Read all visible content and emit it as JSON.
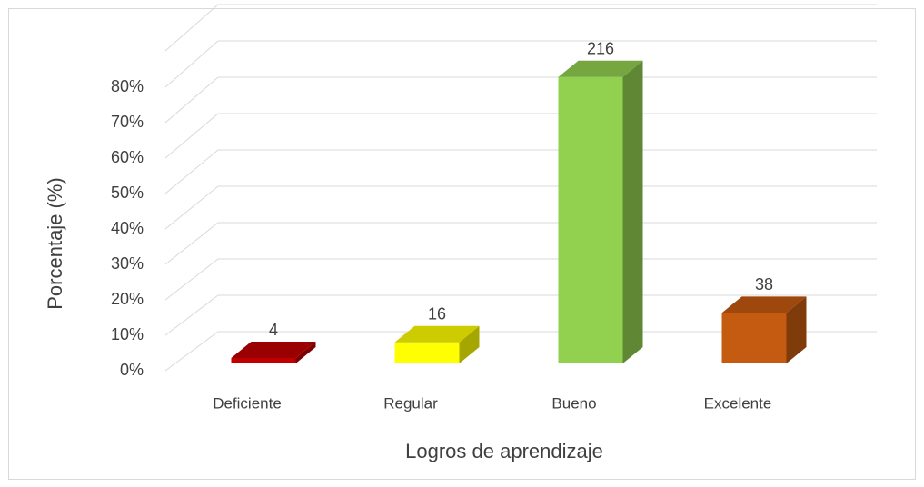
{
  "chart_data": {
    "type": "bar3d",
    "categories": [
      "Deficiente",
      "Regular",
      "Bueno",
      "Excelente"
    ],
    "values": [
      1.5,
      5.8,
      78.8,
      13.9
    ],
    "counts": [
      4,
      16,
      216,
      38
    ],
    "colors": [
      "#c00000",
      "#ffff00",
      "#92d050",
      "#c55a11"
    ],
    "ylim": [
      0,
      80
    ],
    "yticks": [
      {
        "value": 0,
        "label": "0%"
      },
      {
        "value": 10,
        "label": "10%"
      },
      {
        "value": 20,
        "label": "20%"
      },
      {
        "value": 30,
        "label": "30%"
      },
      {
        "value": 40,
        "label": "40%"
      },
      {
        "value": 50,
        "label": "50%"
      },
      {
        "value": 60,
        "label": "60%"
      },
      {
        "value": 70,
        "label": "70%"
      },
      {
        "value": 80,
        "label": "80%"
      }
    ],
    "xlabel": "Logros de aprendizaje",
    "ylabel": "Porcentaje (%)",
    "grid": true
  }
}
